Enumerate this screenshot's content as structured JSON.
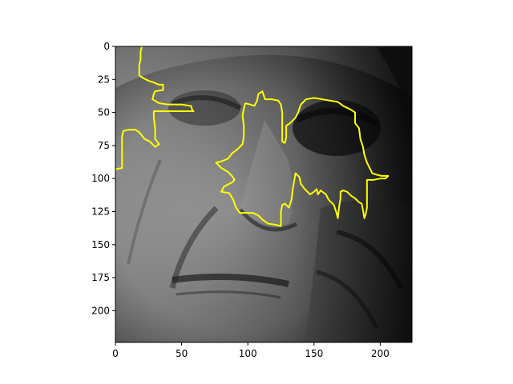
{
  "chart_data": {
    "type": "image",
    "image_width": 224,
    "image_height": 224,
    "x_ticks": [
      0,
      50,
      100,
      150,
      200
    ],
    "y_ticks": [
      0,
      25,
      50,
      75,
      100,
      125,
      150,
      175,
      200
    ],
    "x_tick_labels": [
      "0",
      "50",
      "100",
      "150",
      "200"
    ],
    "y_tick_labels": [
      "0",
      "25",
      "50",
      "75",
      "100",
      "125",
      "150",
      "175",
      "200"
    ],
    "xlim": [
      0,
      224
    ],
    "ylim": [
      224,
      0
    ],
    "image_description_colors": {
      "overlay_line": "#ffff00",
      "background": "#ffffff",
      "axis": "#000000"
    },
    "overlay_contours": [
      {
        "name": "",
        "color": "#ffff00",
        "points": [
          [
            20,
            0
          ],
          [
            19,
            4
          ],
          [
            19,
            10
          ],
          [
            18,
            14
          ],
          [
            18,
            22
          ],
          [
            21,
            24
          ],
          [
            25,
            26
          ],
          [
            28,
            27
          ],
          [
            33,
            29
          ],
          [
            36,
            29
          ],
          [
            36,
            33
          ],
          [
            30,
            34
          ],
          [
            29,
            36
          ],
          [
            28,
            40
          ],
          [
            33,
            43
          ],
          [
            40,
            44
          ],
          [
            50,
            44
          ],
          [
            57,
            45
          ],
          [
            58,
            48
          ],
          [
            59,
            49
          ],
          [
            45,
            49
          ],
          [
            32,
            49
          ],
          [
            29,
            49
          ],
          [
            29,
            54
          ],
          [
            30,
            62
          ],
          [
            30,
            70
          ],
          [
            33,
            74
          ],
          [
            30,
            76
          ],
          [
            26,
            72
          ],
          [
            22,
            70
          ],
          [
            18,
            65
          ],
          [
            15,
            63
          ],
          [
            10,
            63
          ],
          [
            6,
            64
          ],
          [
            5,
            68
          ],
          [
            5,
            74
          ],
          [
            5,
            82
          ],
          [
            5,
            92
          ],
          [
            0,
            93
          ]
        ]
      },
      {
        "name": "",
        "color": "#ffff00",
        "points": [
          [
            98,
            43
          ],
          [
            102,
            44
          ],
          [
            105,
            45
          ],
          [
            107,
            41
          ],
          [
            108,
            36
          ],
          [
            111,
            34
          ],
          [
            113,
            40
          ],
          [
            118,
            40
          ],
          [
            123,
            41
          ],
          [
            125,
            44
          ],
          [
            126,
            50
          ],
          [
            126,
            60
          ],
          [
            126,
            66
          ],
          [
            126,
            72
          ],
          [
            128,
            73
          ],
          [
            129,
            69
          ],
          [
            129,
            60
          ],
          [
            132,
            58
          ],
          [
            136,
            54
          ],
          [
            138,
            50
          ],
          [
            140,
            44
          ],
          [
            144,
            40
          ],
          [
            150,
            39
          ],
          [
            156,
            40
          ],
          [
            162,
            41
          ],
          [
            168,
            42
          ],
          [
            172,
            45
          ],
          [
            178,
            48
          ],
          [
            181,
            50
          ],
          [
            181,
            58
          ],
          [
            184,
            62
          ],
          [
            185,
            70
          ],
          [
            187,
            76
          ],
          [
            188,
            82
          ],
          [
            190,
            88
          ],
          [
            192,
            92
          ],
          [
            194,
            96
          ],
          [
            197,
            97
          ],
          [
            201,
            98
          ],
          [
            206,
            98
          ],
          [
            204,
            100
          ],
          [
            200,
            100
          ],
          [
            195,
            101
          ],
          [
            190,
            101
          ],
          [
            190,
            107
          ],
          [
            190,
            116
          ],
          [
            190,
            122
          ],
          [
            189,
            127
          ],
          [
            188,
            130
          ],
          [
            187,
            124
          ],
          [
            186,
            119
          ],
          [
            184,
            118
          ],
          [
            181,
            115
          ],
          [
            178,
            113
          ],
          [
            175,
            110
          ],
          [
            172,
            109
          ],
          [
            170,
            110
          ],
          [
            170,
            115
          ],
          [
            169,
            121
          ],
          [
            168,
            130
          ],
          [
            167,
            126
          ],
          [
            165,
            120
          ],
          [
            163,
            118
          ],
          [
            161,
            116
          ],
          [
            159,
            112
          ],
          [
            155,
            109
          ],
          [
            153,
            112
          ],
          [
            152,
            108
          ],
          [
            150,
            110
          ],
          [
            147,
            112
          ],
          [
            145,
            110
          ],
          [
            143,
            108
          ],
          [
            140,
            104
          ],
          [
            139,
            99
          ],
          [
            137,
            97
          ],
          [
            136,
            96
          ],
          [
            135,
            102
          ],
          [
            134,
            108
          ],
          [
            133,
            116
          ],
          [
            131,
            122
          ],
          [
            128,
            119
          ],
          [
            126,
            120
          ],
          [
            125,
            125
          ],
          [
            125,
            130
          ],
          [
            125,
            136
          ],
          [
            121,
            135
          ],
          [
            115,
            134
          ],
          [
            111,
            131
          ],
          [
            108,
            128
          ],
          [
            104,
            126
          ],
          [
            98,
            126
          ],
          [
            94,
            126
          ],
          [
            91,
            122
          ],
          [
            89,
            116
          ],
          [
            86,
            111
          ],
          [
            80,
            110
          ],
          [
            82,
            106
          ],
          [
            88,
            103
          ],
          [
            90,
            101
          ],
          [
            88,
            98
          ],
          [
            85,
            95
          ],
          [
            80,
            92
          ],
          [
            76,
            88
          ],
          [
            80,
            87
          ],
          [
            85,
            85
          ],
          [
            88,
            81
          ],
          [
            92,
            78
          ],
          [
            96,
            74
          ],
          [
            97,
            68
          ],
          [
            97,
            60
          ],
          [
            96,
            52
          ],
          [
            98,
            43
          ]
        ]
      }
    ]
  }
}
